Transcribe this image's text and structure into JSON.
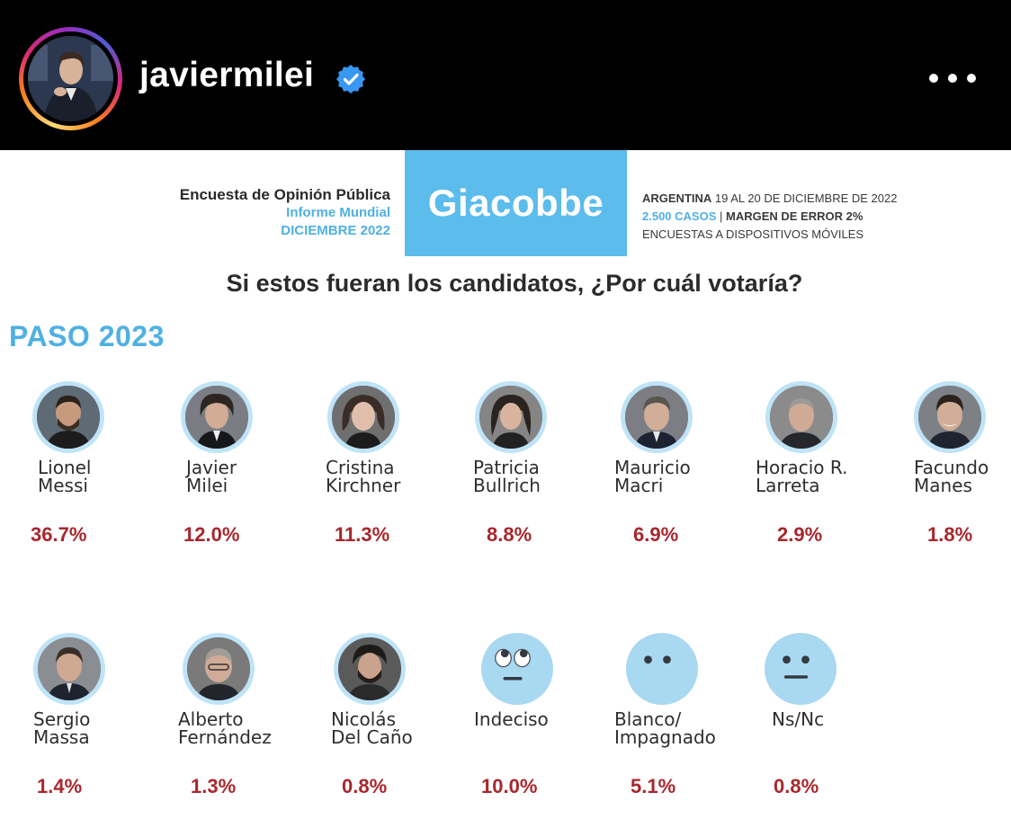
{
  "header": {
    "username": "javiermilei",
    "avatar_icon": "avatar-photo",
    "verified_icon": "verified-badge-icon",
    "more_icon": "more-options-icon"
  },
  "poll": {
    "left_line1": "Encuesta de Opinión Pública",
    "left_line2": "Informe Mundial",
    "left_line3": "DICIEMBRE 2022",
    "brand": "Giacobbe",
    "right_line1_bold": "ARGENTINA",
    "right_line1_rest": " 19 AL 20 DE DICIEMBRE DE 2022",
    "right_line2_blue": "2.500 CASOS",
    "right_line2_sep": " | ",
    "right_line2_bold": "MARGEN DE ERROR 2%",
    "right_line3": "ENCUESTAS A DISPOSITIVOS MÓVILES",
    "question": "Si estos fueran los candidatos, ¿Por cuál votaría?",
    "section": "PASO 2023"
  },
  "candidates_row1": [
    {
      "name": "Lionel\nMessi",
      "pct": "36.7%"
    },
    {
      "name": "Javier\nMilei",
      "pct": "12.0%"
    },
    {
      "name": "Cristina\nKirchner",
      "pct": "11.3%"
    },
    {
      "name": "Patricia\nBullrich",
      "pct": "8.8%"
    },
    {
      "name": "Mauricio\nMacri",
      "pct": "6.9%"
    },
    {
      "name": "Horacio R.\nLarreta",
      "pct": "2.9%"
    },
    {
      "name": "Facundo\nManes",
      "pct": "1.8%"
    }
  ],
  "candidates_row2": [
    {
      "name": "Sergio\nMassa",
      "pct": "1.4%"
    },
    {
      "name": "Alberto\nFernández",
      "pct": "1.3%"
    },
    {
      "name": "Nicolás\nDel Caño",
      "pct": "0.8%"
    },
    {
      "name": "Indeciso",
      "pct": "10.0%"
    },
    {
      "name": "Blanco/\nImpagnado",
      "pct": "5.1%"
    },
    {
      "name": "Ns/Nc",
      "pct": "0.8%"
    }
  ],
  "colors": {
    "accent_blue": "#5cbcec",
    "percent_red": "#a7272d",
    "photo_ring": "#bfe3f7"
  }
}
